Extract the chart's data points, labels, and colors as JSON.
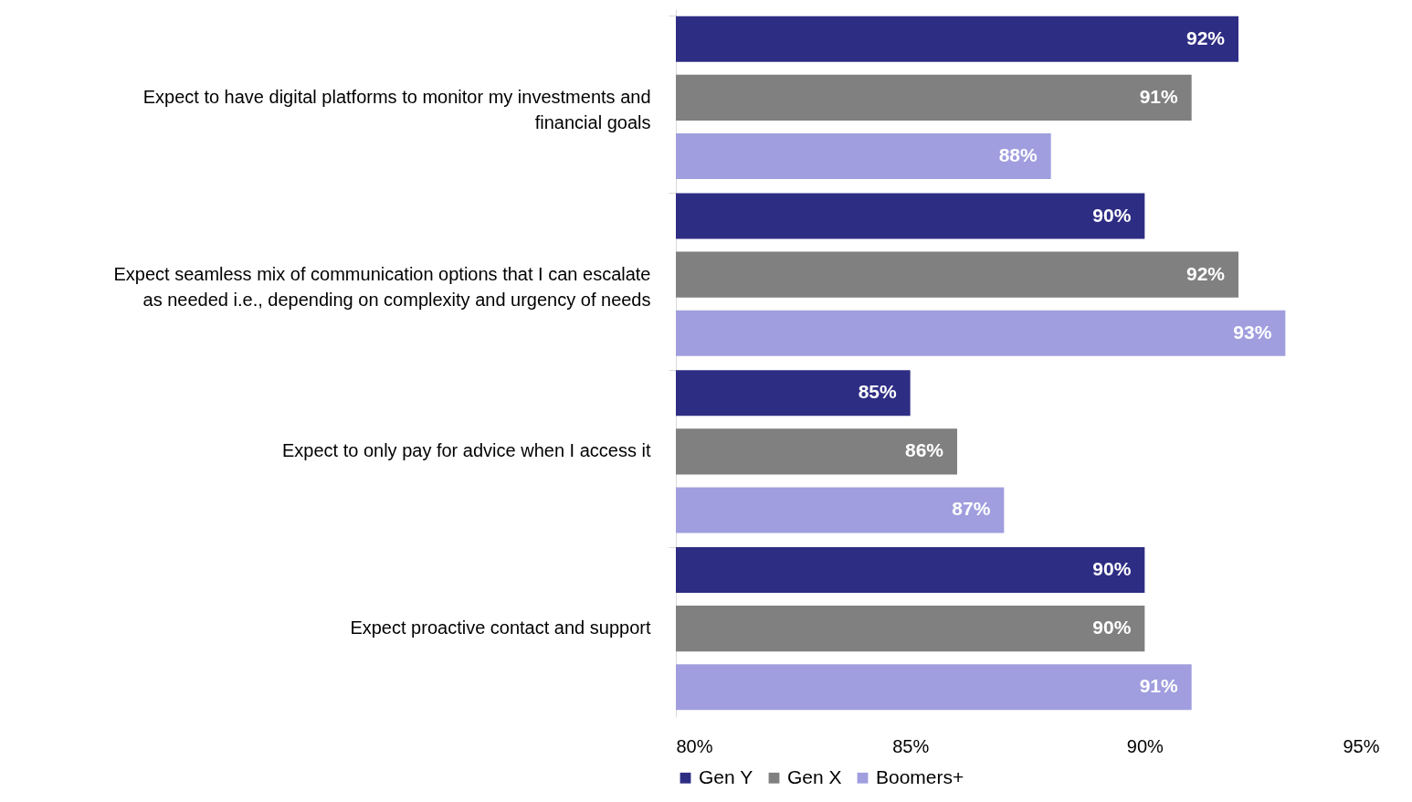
{
  "chart_data": {
    "type": "bar",
    "orientation": "horizontal",
    "categories": [
      "Expect to have digital platforms to monitor my investments and financial goals",
      "Expect seamless mix of communication options that I can escalate as needed i.e., depending on complexity and urgency of needs",
      "Expect to only pay for advice when I access it",
      "Expect proactive contact and support"
    ],
    "series": [
      {
        "name": "Gen Y",
        "color": "#2e2d84",
        "values": [
          92,
          90,
          85,
          90
        ],
        "value_labels": [
          "92%",
          "90%",
          "85%",
          "90%"
        ]
      },
      {
        "name": "Gen X",
        "color": "#808080",
        "values": [
          91,
          92,
          86,
          90
        ],
        "value_labels": [
          "91%",
          "92%",
          "86%",
          "90%"
        ]
      },
      {
        "name": "Boomers+",
        "color": "#a09ede",
        "values": [
          88,
          93,
          87,
          91
        ],
        "value_labels": [
          "88%",
          "93%",
          "87%",
          "91%"
        ]
      }
    ],
    "xlim": [
      80,
      95
    ],
    "xticks": [
      {
        "value": 80,
        "label": "80%"
      },
      {
        "value": 85,
        "label": "85%"
      },
      {
        "value": 90,
        "label": "90%"
      },
      {
        "value": 95,
        "label": "95%"
      }
    ],
    "grid": false,
    "legend": "bottom"
  }
}
